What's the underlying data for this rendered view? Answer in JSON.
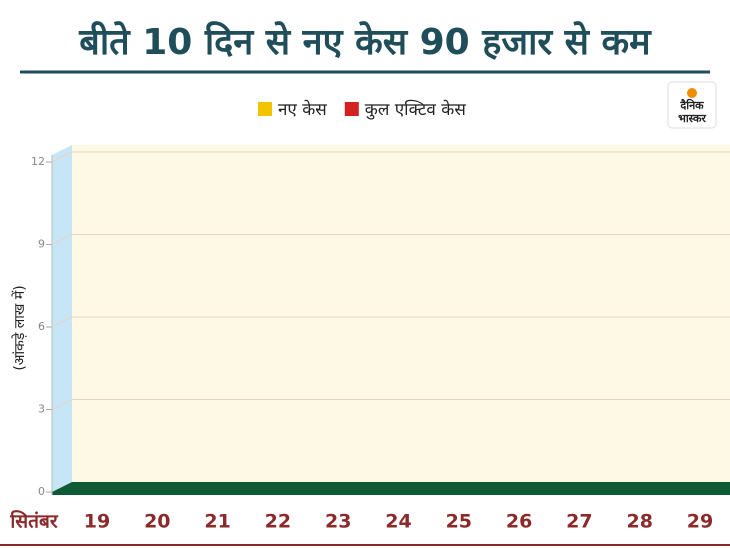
{
  "chart_data": {
    "type": "bar",
    "title": "बीते 10 दिन से नए केस 90 हजार से कम",
    "logo": [
      "दैनिक",
      "भास्कर"
    ],
    "ylabel": "(आंकड़े लाख में)",
    "xlabel": "सितंबर",
    "categories": [
      "19",
      "20",
      "21",
      "22",
      "23",
      "24",
      "25",
      "26",
      "27",
      "28",
      "29"
    ],
    "series": [
      {
        "name": "नए केस",
        "color": "#f2c400",
        "values": [
          null,
          null,
          null,
          null,
          null,
          null,
          null,
          null,
          null,
          null,
          null
        ]
      },
      {
        "name": "कुल एक्टिव केस",
        "color": "#d42020",
        "values": [
          null,
          null,
          null,
          null,
          null,
          null,
          null,
          null,
          null,
          null,
          null
        ]
      }
    ],
    "ylim": [
      0,
      12
    ],
    "yticks": [
      0,
      3,
      6,
      9,
      12
    ],
    "grid": true
  }
}
